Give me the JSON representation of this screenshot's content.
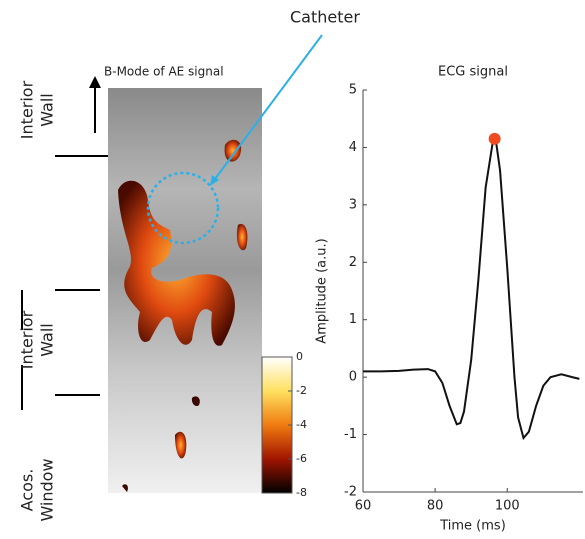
{
  "annotation": "Catheter",
  "bmode_panel": {
    "title": "B-Mode of AE signal",
    "side_labels": [
      [
        "Interior",
        "Wall"
      ],
      [
        "Interior",
        "Wall"
      ],
      [
        "Acos.",
        "Window"
      ]
    ],
    "colorbar": {
      "lim": [
        -8,
        0
      ],
      "ticks": [
        0,
        -2,
        -4,
        -6,
        -8
      ]
    }
  },
  "chart_data": {
    "type": "line",
    "title": "ECG signal",
    "x_label": "Time (ms)",
    "y_label": "Amplitude (a.u.)",
    "xlim": [
      60,
      121
    ],
    "xticks": [
      60,
      80,
      100
    ],
    "ylim": [
      -2,
      5
    ],
    "yticks": [
      -2,
      -1,
      0,
      1,
      2,
      3,
      4,
      5
    ],
    "series": [
      {
        "color": "#111111",
        "x": [
          60,
          65,
          70,
          74,
          78,
          80,
          82,
          84,
          86,
          87,
          88,
          90,
          92,
          94,
          96,
          96.5,
          97,
          98,
          100,
          102,
          103,
          104.5,
          106,
          108,
          110,
          112,
          115,
          118,
          120
        ],
        "values": [
          0.1,
          0.1,
          0.11,
          0.13,
          0.14,
          0.1,
          -0.1,
          -0.5,
          -0.82,
          -0.8,
          -0.6,
          0.3,
          1.7,
          3.3,
          4.1,
          4.15,
          4.05,
          3.6,
          1.9,
          0.0,
          -0.7,
          -1.06,
          -0.95,
          -0.5,
          -0.15,
          0.0,
          0.05,
          0.0,
          -0.03
        ]
      }
    ],
    "highlight": {
      "x": 96.5,
      "y": 4.15,
      "color": "#f04a20"
    }
  }
}
